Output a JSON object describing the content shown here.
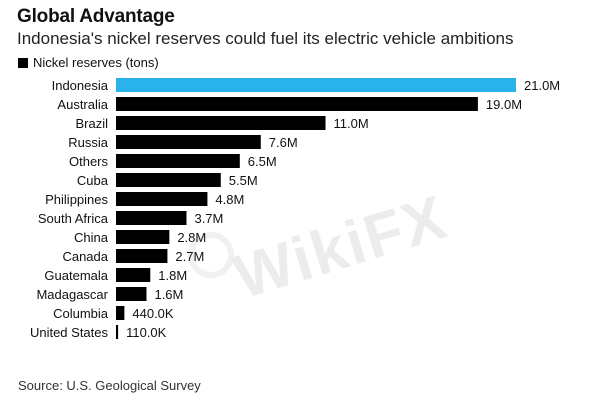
{
  "header": {
    "title": "Global Advantage",
    "subtitle": "Indonesia's nickel reserves could fuel its electric vehicle ambitions"
  },
  "legend": {
    "label": "Nickel reserves (tons)"
  },
  "source": "Source: U.S. Geological Survey",
  "watermark": "WikiFX",
  "colors": {
    "highlight": "#2ab3ea",
    "bar": "#000000"
  },
  "chart_data": {
    "type": "bar",
    "orientation": "horizontal",
    "title": "Global Advantage",
    "subtitle": "Indonesia's nickel reserves could fuel its electric vehicle ambitions",
    "xlabel": "",
    "ylabel": "",
    "xlim": [
      0,
      21000000
    ],
    "grid": false,
    "legend_position": "top-left",
    "categories": [
      "Indonesia",
      "Australia",
      "Brazil",
      "Russia",
      "Others",
      "Cuba",
      "Philippines",
      "South Africa",
      "China",
      "Canada",
      "Guatemala",
      "Madagascar",
      "Columbia",
      "United States"
    ],
    "series": [
      {
        "name": "Nickel reserves (tons)",
        "values": [
          21000000,
          19000000,
          11000000,
          7600000,
          6500000,
          5500000,
          4800000,
          3700000,
          2800000,
          2700000,
          1800000,
          1600000,
          440000,
          110000
        ],
        "labels": [
          "21.0M",
          "19.0M",
          "11.0M",
          "7.6M",
          "6.5M",
          "5.5M",
          "4.8M",
          "3.7M",
          "2.8M",
          "2.7M",
          "1.8M",
          "1.6M",
          "440.0K",
          "110.0K"
        ]
      }
    ],
    "highlight_category": "Indonesia"
  }
}
